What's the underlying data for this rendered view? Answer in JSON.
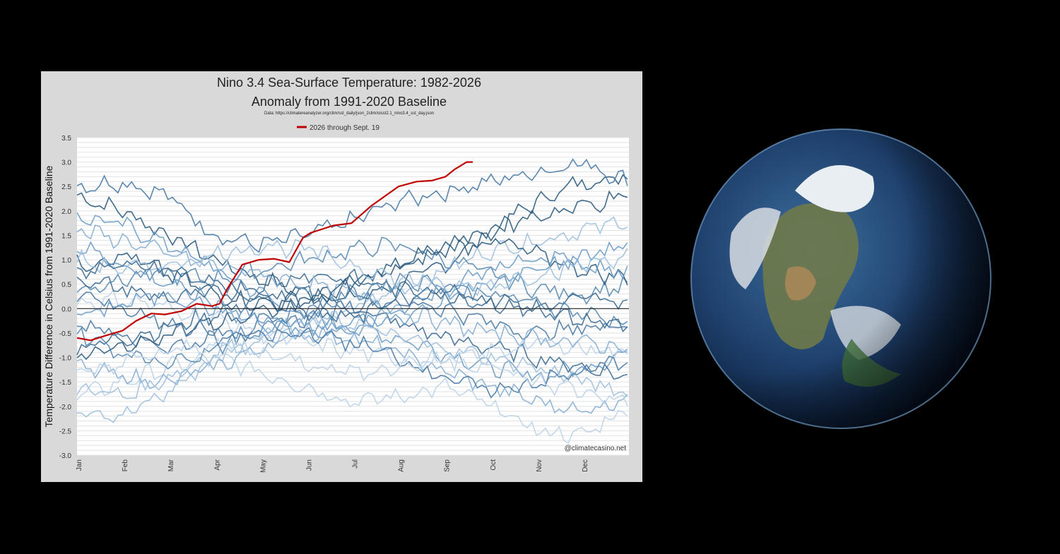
{
  "chart_data": {
    "type": "line",
    "title": "Nino 3.4 Sea-Surface Temperature: 1982-2026",
    "subtitle": "Anomaly from 1991-2020 Baseline",
    "source": "Data: https://climatereanalyzer.org/clim/sst_daily/json_2clim/oisst2.1_nino3.4_sst_day.json",
    "ylabel": "Temperature Difference in Celsius from 1991-2020 Baseline",
    "xlabel": "",
    "ylim": [
      -3.0,
      3.5
    ],
    "yticks": [
      "3.5",
      "3.0",
      "2.5",
      "2.0",
      "1.5",
      "1.0",
      "0.5",
      "0.0",
      "-0.5",
      "-1.0",
      "-1.5",
      "-2.0",
      "-2.5",
      "-3.0"
    ],
    "ytick_values": [
      3.5,
      3.0,
      2.5,
      2.0,
      1.5,
      1.0,
      0.5,
      0.0,
      -0.5,
      -1.0,
      -1.5,
      -2.0,
      -2.5,
      -3.0
    ],
    "months": [
      "Jan",
      "Feb",
      "Mar",
      "Apr",
      "May",
      "Jun",
      "Jul",
      "Aug",
      "Sep",
      "Oct",
      "Nov",
      "Dec"
    ],
    "grid": true,
    "legend_position": "top-center",
    "watermark": "@climatecasino.net",
    "highlight_series": {
      "name": "2026 through Sept. 19",
      "color": "#c00000",
      "x_day": [
        1,
        10,
        20,
        31,
        40,
        50,
        59,
        70,
        80,
        90,
        95,
        100,
        110,
        121,
        131,
        141,
        150,
        155,
        160,
        170,
        182,
        195,
        213,
        225,
        235,
        244,
        250,
        258,
        262
      ],
      "values": [
        -0.6,
        -0.65,
        -0.55,
        -0.45,
        -0.25,
        -0.1,
        -0.12,
        -0.05,
        0.1,
        0.05,
        0.1,
        0.4,
        0.9,
        1.0,
        1.02,
        0.95,
        1.45,
        1.55,
        1.6,
        1.7,
        1.75,
        2.1,
        2.5,
        2.6,
        2.62,
        2.7,
        2.85,
        3.0,
        3.0
      ]
    },
    "background_series": [
      {
        "name": "",
        "values": [
          2.3,
          2.0,
          1.5,
          1.0,
          0.6,
          0.3,
          0.2,
          0.5,
          0.9,
          1.6,
          2.2,
          2.6,
          2.7
        ]
      },
      {
        "name": "",
        "values": [
          2.5,
          2.6,
          2.3,
          1.5,
          1.3,
          1.5,
          1.8,
          2.2,
          2.4,
          2.6,
          2.8,
          3.0,
          2.6
        ]
      },
      {
        "name": "",
        "values": [
          1.9,
          1.7,
          1.3,
          0.8,
          0.3,
          -0.2,
          -0.4,
          -0.6,
          -0.9,
          -1.2,
          -1.4,
          -1.2,
          -0.9
        ]
      },
      {
        "name": "",
        "values": [
          -2.0,
          -2.2,
          -1.7,
          -1.0,
          -0.6,
          -0.4,
          0.0,
          0.4,
          0.8,
          1.2,
          1.4,
          1.6,
          1.8
        ]
      },
      {
        "name": "",
        "values": [
          -1.8,
          -1.5,
          -1.2,
          -1.0,
          -1.3,
          -1.6,
          -1.9,
          -1.8,
          -1.6,
          -2.0,
          -2.5,
          -2.6,
          -2.0
        ]
      },
      {
        "name": "",
        "values": [
          -0.8,
          -0.6,
          -0.4,
          -0.1,
          0.2,
          0.3,
          0.0,
          -0.3,
          -0.6,
          -0.8,
          -1.0,
          -1.2,
          -1.4
        ]
      },
      {
        "name": "",
        "values": [
          0.4,
          0.6,
          0.7,
          0.6,
          0.8,
          1.0,
          1.2,
          1.3,
          1.0,
          0.7,
          0.4,
          0.3,
          0.5
        ]
      },
      {
        "name": "",
        "values": [
          -1.2,
          -1.4,
          -1.5,
          -1.2,
          -0.8,
          -0.5,
          -0.6,
          -0.9,
          -1.3,
          -1.6,
          -1.9,
          -2.1,
          -1.8
        ]
      },
      {
        "name": "",
        "values": [
          0.9,
          1.1,
          0.7,
          0.3,
          0.1,
          0.2,
          0.5,
          0.8,
          1.2,
          1.4,
          1.1,
          0.8,
          0.6
        ]
      },
      {
        "name": "",
        "values": [
          -0.3,
          -0.5,
          -0.8,
          -0.6,
          -0.3,
          -0.2,
          0.1,
          0.2,
          0.0,
          -0.3,
          -0.5,
          -0.4,
          -0.3
        ]
      },
      {
        "name": "",
        "values": [
          1.3,
          0.9,
          0.5,
          0.1,
          -0.3,
          -0.5,
          -0.4,
          -0.2,
          0.2,
          0.5,
          0.9,
          1.1,
          1.3
        ]
      },
      {
        "name": "",
        "values": [
          -1.6,
          -1.8,
          -1.4,
          -0.9,
          -0.5,
          -0.2,
          -0.3,
          -0.6,
          -0.8,
          -1.0,
          -1.2,
          -1.5,
          -1.7
        ]
      },
      {
        "name": "",
        "values": [
          0.1,
          0.2,
          0.0,
          -0.2,
          -0.5,
          -0.7,
          -0.9,
          -1.0,
          -1.1,
          -0.9,
          -0.7,
          -0.8,
          -0.9
        ]
      },
      {
        "name": "",
        "values": [
          0.6,
          0.4,
          0.2,
          0.3,
          0.5,
          0.7,
          0.6,
          0.4,
          0.3,
          0.1,
          0.0,
          0.2,
          0.1
        ]
      },
      {
        "name": "",
        "values": [
          -0.5,
          -0.9,
          -1.1,
          -0.8,
          -0.4,
          0.0,
          0.3,
          0.6,
          0.5,
          0.3,
          0.1,
          -0.1,
          -0.3
        ]
      },
      {
        "name": "",
        "values": [
          1.6,
          1.4,
          1.1,
          0.9,
          0.7,
          0.5,
          0.3,
          0.0,
          -0.3,
          -0.5,
          -0.6,
          -0.7,
          -0.8
        ]
      },
      {
        "name": "",
        "values": [
          -1.0,
          -0.8,
          -0.5,
          -0.3,
          -0.1,
          0.2,
          0.5,
          0.9,
          1.3,
          1.6,
          1.9,
          2.1,
          2.3
        ]
      },
      {
        "name": "",
        "values": [
          0.3,
          0.0,
          -0.3,
          -0.5,
          -0.6,
          -0.5,
          -0.7,
          -1.0,
          -1.4,
          -1.7,
          -1.5,
          -1.3,
          -1.0
        ]
      },
      {
        "name": "",
        "values": [
          -0.2,
          0.1,
          0.3,
          0.0,
          -0.2,
          -0.4,
          -0.3,
          0.0,
          0.4,
          0.8,
          1.0,
          0.9,
          0.7
        ]
      },
      {
        "name": "",
        "values": [
          1.0,
          0.8,
          0.9,
          1.1,
          1.3,
          1.2,
          0.9,
          0.6,
          0.4,
          0.5,
          0.7,
          0.9,
          1.1
        ]
      },
      {
        "name": "",
        "values": [
          -1.4,
          -1.1,
          -0.9,
          -0.7,
          -0.9,
          -1.1,
          -1.3,
          -1.2,
          -1.0,
          -1.2,
          -1.5,
          -1.7,
          -1.9
        ]
      },
      {
        "name": "",
        "values": [
          0.7,
          0.9,
          0.8,
          0.5,
          0.2,
          -0.1,
          -0.2,
          0.1,
          0.3,
          0.2,
          0.0,
          -0.2,
          -0.4
        ]
      }
    ]
  },
  "earth": {
    "image_label": "Earth from space, North America"
  }
}
